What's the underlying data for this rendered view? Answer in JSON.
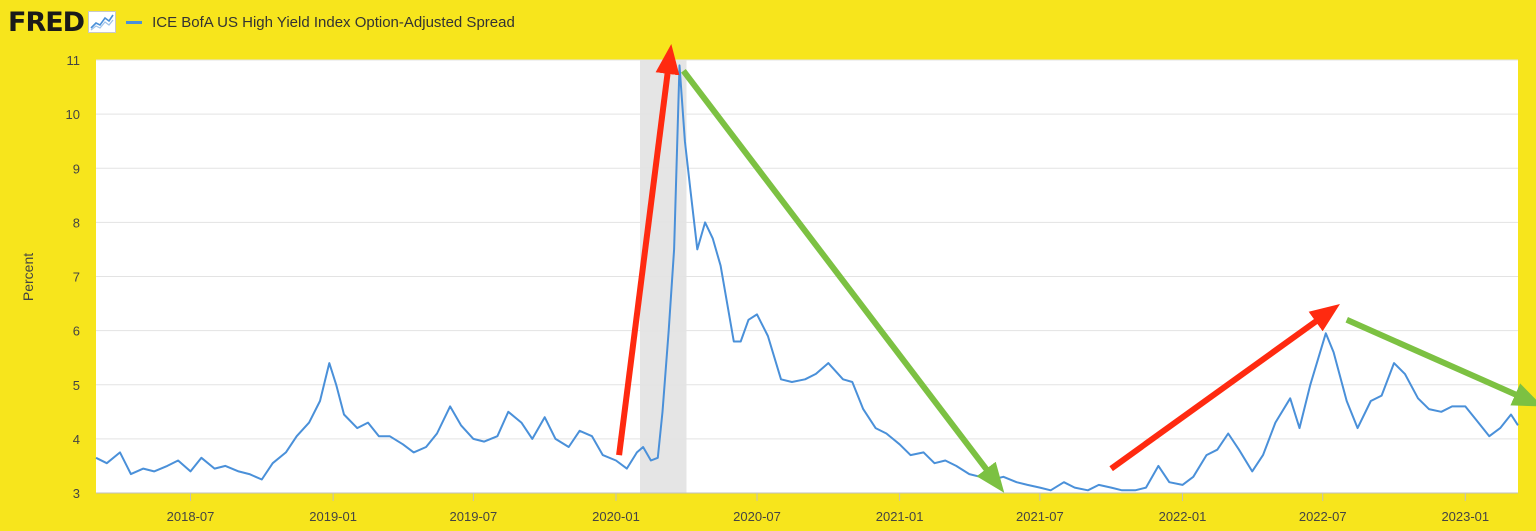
{
  "header": {
    "logo_text": "FRED",
    "series_title": "ICE BofA US High Yield Index Option-Adjusted Spread"
  },
  "colors": {
    "background": "#f7e51c",
    "line": "#4a90d9",
    "recession": "#e5e5e5",
    "up_arrow": "#ff2a10",
    "down_arrow": "#7cc142"
  },
  "chart_data": {
    "type": "line",
    "ylabel": "Percent",
    "ylim": [
      3,
      11
    ],
    "xlim": [
      "2018-03-01",
      "2023-03-10"
    ],
    "y_ticks": [
      3,
      4,
      5,
      6,
      7,
      8,
      9,
      10,
      11
    ],
    "x_ticks": [
      "2018-07",
      "2019-01",
      "2019-07",
      "2020-01",
      "2020-07",
      "2021-01",
      "2021-07",
      "2022-01",
      "2022-07",
      "2023-01"
    ],
    "grid": true,
    "legend": "top-left",
    "recession_shading": [
      "2020-02-01",
      "2020-04-01"
    ],
    "series": [
      {
        "name": "ICE BofA US High Yield Index Option-Adjusted Spread",
        "points": [
          [
            "2018-03-01",
            3.65
          ],
          [
            "2018-03-15",
            3.55
          ],
          [
            "2018-04-01",
            3.75
          ],
          [
            "2018-04-15",
            3.35
          ],
          [
            "2018-05-01",
            3.45
          ],
          [
            "2018-05-15",
            3.4
          ],
          [
            "2018-06-01",
            3.5
          ],
          [
            "2018-06-15",
            3.6
          ],
          [
            "2018-07-01",
            3.4
          ],
          [
            "2018-07-15",
            3.65
          ],
          [
            "2018-08-01",
            3.45
          ],
          [
            "2018-08-15",
            3.5
          ],
          [
            "2018-09-01",
            3.4
          ],
          [
            "2018-09-15",
            3.35
          ],
          [
            "2018-10-01",
            3.25
          ],
          [
            "2018-10-15",
            3.55
          ],
          [
            "2018-11-01",
            3.75
          ],
          [
            "2018-11-15",
            4.05
          ],
          [
            "2018-12-01",
            4.3
          ],
          [
            "2018-12-15",
            4.7
          ],
          [
            "2018-12-27",
            5.4
          ],
          [
            "2019-01-05",
            5.0
          ],
          [
            "2019-01-15",
            4.45
          ],
          [
            "2019-02-01",
            4.2
          ],
          [
            "2019-02-15",
            4.3
          ],
          [
            "2019-03-01",
            4.05
          ],
          [
            "2019-03-15",
            4.05
          ],
          [
            "2019-04-01",
            3.9
          ],
          [
            "2019-04-15",
            3.75
          ],
          [
            "2019-05-01",
            3.85
          ],
          [
            "2019-05-15",
            4.1
          ],
          [
            "2019-06-01",
            4.6
          ],
          [
            "2019-06-15",
            4.25
          ],
          [
            "2019-07-01",
            4.0
          ],
          [
            "2019-07-15",
            3.95
          ],
          [
            "2019-08-01",
            4.05
          ],
          [
            "2019-08-15",
            4.5
          ],
          [
            "2019-09-01",
            4.3
          ],
          [
            "2019-09-15",
            4.0
          ],
          [
            "2019-10-01",
            4.4
          ],
          [
            "2019-10-15",
            4.0
          ],
          [
            "2019-11-01",
            3.85
          ],
          [
            "2019-11-15",
            4.15
          ],
          [
            "2019-12-01",
            4.05
          ],
          [
            "2019-12-15",
            3.7
          ],
          [
            "2020-01-01",
            3.6
          ],
          [
            "2020-01-15",
            3.45
          ],
          [
            "2020-01-28",
            3.75
          ],
          [
            "2020-02-05",
            3.85
          ],
          [
            "2020-02-15",
            3.6
          ],
          [
            "2020-02-24",
            3.65
          ],
          [
            "2020-03-01",
            4.5
          ],
          [
            "2020-03-09",
            6.0
          ],
          [
            "2020-03-16",
            7.5
          ],
          [
            "2020-03-23",
            10.9
          ],
          [
            "2020-03-30",
            9.5
          ],
          [
            "2020-04-06",
            8.6
          ],
          [
            "2020-04-15",
            7.5
          ],
          [
            "2020-04-25",
            8.0
          ],
          [
            "2020-05-05",
            7.7
          ],
          [
            "2020-05-15",
            7.2
          ],
          [
            "2020-06-01",
            5.8
          ],
          [
            "2020-06-10",
            5.8
          ],
          [
            "2020-06-20",
            6.2
          ],
          [
            "2020-07-01",
            6.3
          ],
          [
            "2020-07-15",
            5.9
          ],
          [
            "2020-08-01",
            5.1
          ],
          [
            "2020-08-15",
            5.05
          ],
          [
            "2020-09-01",
            5.1
          ],
          [
            "2020-09-15",
            5.2
          ],
          [
            "2020-10-01",
            5.4
          ],
          [
            "2020-10-20",
            5.1
          ],
          [
            "2020-11-01",
            5.05
          ],
          [
            "2020-11-15",
            4.55
          ],
          [
            "2020-12-01",
            4.2
          ],
          [
            "2020-12-15",
            4.1
          ],
          [
            "2021-01-01",
            3.9
          ],
          [
            "2021-01-15",
            3.7
          ],
          [
            "2021-02-01",
            3.75
          ],
          [
            "2021-02-15",
            3.55
          ],
          [
            "2021-03-01",
            3.6
          ],
          [
            "2021-03-15",
            3.5
          ],
          [
            "2021-04-01",
            3.35
          ],
          [
            "2021-04-15",
            3.3
          ],
          [
            "2021-05-01",
            3.25
          ],
          [
            "2021-05-15",
            3.3
          ],
          [
            "2021-06-01",
            3.2
          ],
          [
            "2021-06-15",
            3.15
          ],
          [
            "2021-07-01",
            3.1
          ],
          [
            "2021-07-15",
            3.05
          ],
          [
            "2021-08-01",
            3.2
          ],
          [
            "2021-08-15",
            3.1
          ],
          [
            "2021-09-01",
            3.05
          ],
          [
            "2021-09-15",
            3.15
          ],
          [
            "2021-10-01",
            3.1
          ],
          [
            "2021-10-15",
            3.05
          ],
          [
            "2021-11-01",
            3.05
          ],
          [
            "2021-11-15",
            3.1
          ],
          [
            "2021-12-01",
            3.5
          ],
          [
            "2021-12-15",
            3.2
          ],
          [
            "2022-01-01",
            3.15
          ],
          [
            "2022-01-15",
            3.3
          ],
          [
            "2022-02-01",
            3.7
          ],
          [
            "2022-02-15",
            3.8
          ],
          [
            "2022-03-01",
            4.1
          ],
          [
            "2022-03-15",
            3.8
          ],
          [
            "2022-04-01",
            3.4
          ],
          [
            "2022-04-15",
            3.7
          ],
          [
            "2022-05-01",
            4.3
          ],
          [
            "2022-05-20",
            4.75
          ],
          [
            "2022-06-01",
            4.2
          ],
          [
            "2022-06-15",
            5.0
          ],
          [
            "2022-07-05",
            5.95
          ],
          [
            "2022-07-15",
            5.6
          ],
          [
            "2022-08-01",
            4.7
          ],
          [
            "2022-08-15",
            4.2
          ],
          [
            "2022-09-01",
            4.7
          ],
          [
            "2022-09-15",
            4.8
          ],
          [
            "2022-10-01",
            5.4
          ],
          [
            "2022-10-15",
            5.2
          ],
          [
            "2022-11-01",
            4.75
          ],
          [
            "2022-11-15",
            4.55
          ],
          [
            "2022-12-01",
            4.5
          ],
          [
            "2022-12-15",
            4.6
          ],
          [
            "2023-01-01",
            4.6
          ],
          [
            "2023-01-15",
            4.35
          ],
          [
            "2023-02-01",
            4.05
          ],
          [
            "2023-02-15",
            4.2
          ],
          [
            "2023-03-01",
            4.45
          ],
          [
            "2023-03-10",
            4.25
          ]
        ]
      }
    ],
    "annotations": [
      {
        "type": "arrow",
        "direction": "up",
        "color": "red",
        "from": [
          "2020-01-05",
          3.7
        ],
        "to": [
          "2020-03-08",
          10.8
        ]
      },
      {
        "type": "arrow",
        "direction": "down",
        "color": "green",
        "from": [
          "2020-03-28",
          10.8
        ],
        "to": [
          "2021-04-25",
          3.4
        ]
      },
      {
        "type": "arrow",
        "direction": "up",
        "color": "red",
        "from": [
          "2021-10-01",
          3.45
        ],
        "to": [
          "2022-06-25",
          6.2
        ]
      },
      {
        "type": "arrow",
        "direction": "down",
        "color": "green",
        "from": [
          "2022-08-01",
          6.2
        ],
        "to": [
          "2023-03-10",
          4.8
        ]
      }
    ]
  }
}
